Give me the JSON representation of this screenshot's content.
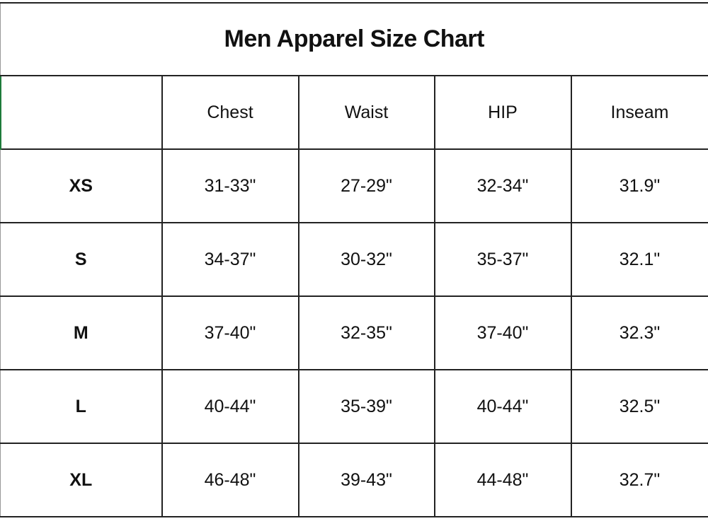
{
  "chart_data": {
    "type": "table",
    "title": "Men Apparel Size Chart",
    "columns": [
      "",
      "Chest",
      "Waist",
      "HIP",
      "Inseam"
    ],
    "rows": [
      {
        "size": "XS",
        "values": [
          "31-33\"",
          "27-29\"",
          "32-34\"",
          "31.9\""
        ]
      },
      {
        "size": "S",
        "values": [
          "34-37\"",
          "30-32\"",
          "35-37\"",
          "32.1\""
        ]
      },
      {
        "size": "M",
        "values": [
          "37-40\"",
          "32-35\"",
          "37-40\"",
          "32.3\""
        ]
      },
      {
        "size": "L",
        "values": [
          "40-44\"",
          "35-39\"",
          "40-44\"",
          "32.5\""
        ]
      },
      {
        "size": "XL",
        "values": [
          "46-48\"",
          "39-43\"",
          "44-48\"",
          "32.7\""
        ]
      }
    ]
  },
  "colors": {
    "selection_edge": "#1e7b3a",
    "grid": "#222222"
  }
}
